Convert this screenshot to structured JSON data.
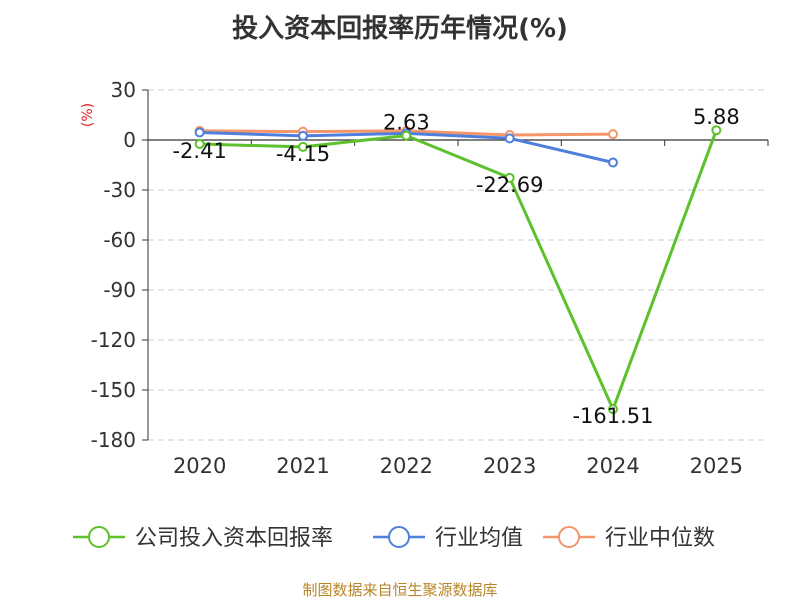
{
  "title": "投入资本回报率历年情况(%)",
  "source": "制图数据来自恒生聚源数据库",
  "chart_data": {
    "type": "line",
    "title": "投入资本回报率历年情况(%)",
    "yunit": "(%)",
    "ylim": [
      -180,
      30
    ],
    "yticks": [
      30,
      0,
      -30,
      -60,
      -90,
      -120,
      -150,
      -180
    ],
    "categories": [
      "2020",
      "2021",
      "2022",
      "2023",
      "2024",
      "2025"
    ],
    "grid": true,
    "legend_position": "bottom",
    "series": [
      {
        "name": "公司投入资本回报率",
        "color": "#5cc12c",
        "values": [
          -2.41,
          -4.15,
          2.63,
          -22.69,
          -161.51,
          5.88
        ],
        "labels": [
          "-2.41",
          "-4.15",
          "2.63",
          "-22.69",
          "-161.51",
          "5.88"
        ]
      },
      {
        "name": "行业均值",
        "color": "#4e7fdc",
        "values": [
          4.5,
          2.5,
          4.0,
          1.0,
          -13.5,
          null
        ]
      },
      {
        "name": "行业中位数",
        "color": "#f4956a",
        "values": [
          5.5,
          5.0,
          5.5,
          3.0,
          3.5,
          null
        ]
      }
    ]
  }
}
